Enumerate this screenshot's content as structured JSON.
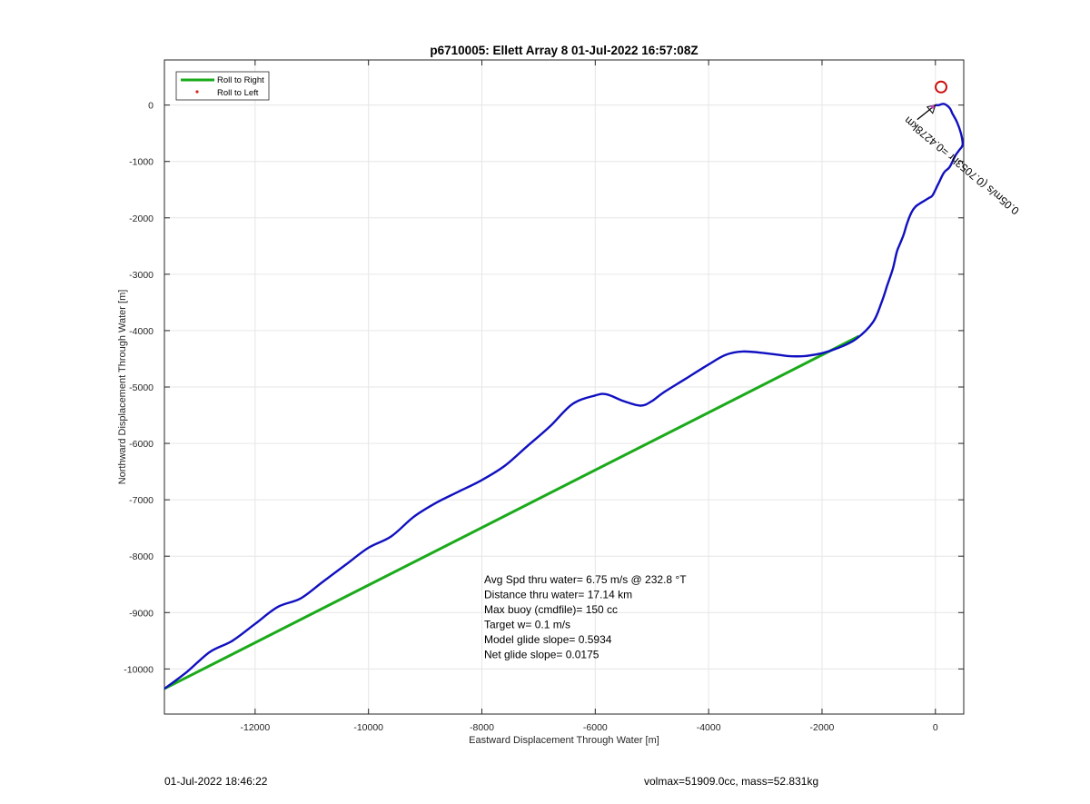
{
  "chart_data": {
    "type": "line",
    "title": "p6710005: Ellett Array 8 01-Jul-2022 16:57:08Z",
    "xlabel": "Eastward Displacement Through Water [m]",
    "ylabel": "Northward Displacement Through Water [m]",
    "xlim": [
      -13600,
      500
    ],
    "ylim": [
      -10800,
      800
    ],
    "xticks": [
      -12000,
      -10000,
      -8000,
      -6000,
      -4000,
      -2000,
      0
    ],
    "yticks": [
      0,
      -1000,
      -2000,
      -3000,
      -4000,
      -5000,
      -6000,
      -7000,
      -8000,
      -9000,
      -10000
    ],
    "grid": true,
    "legend_position": "top-left",
    "series": [
      {
        "name": "Roll to Right",
        "color": "#1aaa1a",
        "x": [
          -13600,
          -1350
        ],
        "y": [
          -10350,
          -4100
        ]
      },
      {
        "name": "Roll to Left",
        "color": "#e02020",
        "marker": "dot",
        "x": [],
        "y": []
      },
      {
        "color": "#1010c0",
        "x": [
          -13600,
          -13200,
          -12800,
          -12400,
          -12000,
          -11600,
          -11200,
          -10800,
          -10400,
          -10000,
          -9600,
          -9200,
          -8800,
          -8400,
          -8000,
          -7600,
          -7200,
          -6800,
          -6400,
          -6000,
          -5800,
          -5500,
          -5200,
          -5000,
          -4800,
          -4400,
          -4000,
          -3700,
          -3400,
          -3000,
          -2600,
          -2300,
          -2000,
          -1700,
          -1400,
          -1100,
          -950,
          -850,
          -750,
          -680,
          -620,
          -560,
          -500,
          -420,
          -350,
          -280,
          -200,
          -120,
          -50,
          50,
          150,
          250,
          350,
          420,
          480,
          450,
          380,
          300,
          250,
          150,
          60,
          0
        ],
        "y": [
          -10350,
          -10050,
          -9700,
          -9500,
          -9200,
          -8900,
          -8750,
          -8450,
          -8150,
          -7850,
          -7650,
          -7300,
          -7050,
          -6850,
          -6650,
          -6400,
          -6050,
          -5700,
          -5300,
          -5150,
          -5130,
          -5250,
          -5330,
          -5250,
          -5100,
          -4850,
          -4600,
          -4430,
          -4370,
          -4400,
          -4450,
          -4450,
          -4400,
          -4300,
          -4150,
          -3850,
          -3500,
          -3200,
          -2900,
          -2600,
          -2450,
          -2300,
          -2100,
          -1900,
          -1800,
          -1750,
          -1700,
          -1650,
          -1600,
          -1400,
          -1200,
          -1100,
          -900,
          -800,
          -700,
          -500,
          -300,
          -150,
          -50,
          20,
          0,
          0
        ]
      }
    ],
    "annotations": [
      "Avg Spd thru water=  6.75 m/s @ 232.8 °T",
      "Distance thru water= 17.14 km",
      "Max buoy (cmdfile)= 150 cc",
      "Target w= 0.1 m/s",
      "Model glide slope= 0.5934",
      "Net glide slope= 0.0175"
    ],
    "arrow_label": "0.05m/s (0.7053hr =0.4278km",
    "end_marker": {
      "x": 100,
      "y": 320,
      "color": "#cc1010"
    }
  },
  "footer": {
    "timestamp": "01-Jul-2022 18:46:22",
    "vol_mass": "volmax=51909.0cc, mass=52.831kg"
  }
}
